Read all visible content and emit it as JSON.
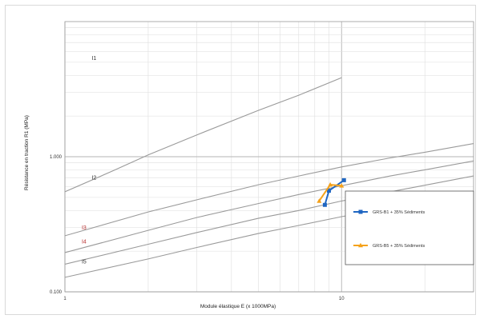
{
  "chart_data": {
    "type": "line",
    "title": "",
    "xlabel": "Module élastique E (x 1000MPa)",
    "ylabel": "Résistance en traction R1 (MPa)",
    "xscale": "log",
    "yscale": "log",
    "xlim": [
      1,
      30
    ],
    "ylim": [
      0.1,
      10
    ],
    "x_tick_labels": [
      "1",
      "10"
    ],
    "y_tick_labels": [
      "0.100",
      "1.000"
    ],
    "grid": true,
    "legend_position": "right",
    "reference_curves": [
      {
        "label": "I1",
        "color": "#333333",
        "points": [
          [
            1,
            0.55
          ],
          [
            1.5,
            0.79
          ],
          [
            2,
            1.03
          ],
          [
            3,
            1.45
          ],
          [
            5,
            2.2
          ],
          [
            7,
            2.85
          ],
          [
            10,
            3.85
          ]
        ]
      },
      {
        "label": "I2",
        "color": "#333333",
        "points": [
          [
            1,
            0.26
          ],
          [
            2,
            0.39
          ],
          [
            3,
            0.48
          ],
          [
            5,
            0.62
          ],
          [
            7,
            0.72
          ],
          [
            10,
            0.84
          ],
          [
            15,
            0.98
          ],
          [
            20,
            1.08
          ],
          [
            30,
            1.25
          ]
        ]
      },
      {
        "label": "I3",
        "color": "#b83232",
        "points": [
          [
            1,
            0.195
          ],
          [
            2,
            0.285
          ],
          [
            3,
            0.355
          ],
          [
            5,
            0.45
          ],
          [
            7,
            0.525
          ],
          [
            10,
            0.61
          ],
          [
            15,
            0.72
          ],
          [
            20,
            0.8
          ],
          [
            30,
            0.93
          ]
        ]
      },
      {
        "label": "I4",
        "color": "#b83232",
        "points": [
          [
            1,
            0.16
          ],
          [
            2,
            0.225
          ],
          [
            3,
            0.275
          ],
          [
            5,
            0.35
          ],
          [
            7,
            0.4
          ],
          [
            10,
            0.47
          ],
          [
            15,
            0.55
          ],
          [
            20,
            0.615
          ],
          [
            30,
            0.72
          ]
        ]
      },
      {
        "label": "I5",
        "color": "#333333",
        "points": [
          [
            1,
            0.128
          ],
          [
            2,
            0.175
          ],
          [
            3,
            0.213
          ],
          [
            5,
            0.27
          ],
          [
            7,
            0.31
          ],
          [
            10,
            0.36
          ],
          [
            15,
            0.42
          ],
          [
            20,
            0.47
          ],
          [
            30,
            0.55
          ]
        ]
      }
    ],
    "series": [
      {
        "name": "GRS-B1 + 35% Sédiments",
        "color": "#1f66c2",
        "marker": "square",
        "x": [
          8.7,
          9.0,
          10.2
        ],
        "y": [
          0.44,
          0.56,
          0.67
        ]
      },
      {
        "name": "GRS-B5 + 35% Sédiments",
        "color": "#f5a21b",
        "marker": "triangle",
        "x": [
          8.3,
          9.1,
          10.0
        ],
        "y": [
          0.47,
          0.62,
          0.61
        ]
      }
    ]
  }
}
